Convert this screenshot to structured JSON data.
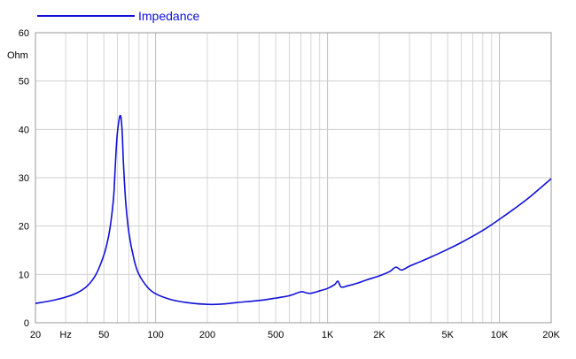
{
  "legend": {
    "label": "Impedance",
    "color": "#1010d8"
  },
  "chart_data": {
    "type": "line",
    "title": "",
    "xlabel": "",
    "ylabel": "Ohm",
    "x_scale": "log",
    "xlim": [
      20,
      20000
    ],
    "ylim": [
      0,
      60
    ],
    "grid": true,
    "legend_position": "top-left",
    "y_ticks": [
      0,
      10,
      20,
      30,
      40,
      50,
      60
    ],
    "x_tick_labels": [
      {
        "x": 20,
        "label": "20"
      },
      {
        "x": 30,
        "label": "Hz"
      },
      {
        "x": 50,
        "label": "50"
      },
      {
        "x": 100,
        "label": "100"
      },
      {
        "x": 200,
        "label": "200"
      },
      {
        "x": 500,
        "label": "500"
      },
      {
        "x": 1000,
        "label": "1K"
      },
      {
        "x": 2000,
        "label": "2K"
      },
      {
        "x": 5000,
        "label": "5K"
      },
      {
        "x": 10000,
        "label": "10K"
      },
      {
        "x": 20000,
        "label": "20K"
      }
    ],
    "series": [
      {
        "name": "Impedance",
        "color": "#1010d8",
        "x": [
          20,
          25,
          30,
          35,
          40,
          45,
          50,
          53,
          55,
          57,
          58,
          59,
          60,
          61,
          62,
          63,
          64,
          65,
          67,
          70,
          75,
          80,
          90,
          100,
          120,
          150,
          200,
          250,
          300,
          400,
          500,
          600,
          700,
          750,
          800,
          900,
          1000,
          1100,
          1150,
          1200,
          1300,
          1500,
          1700,
          2000,
          2300,
          2500,
          2700,
          3000,
          3500,
          4000,
          5000,
          6000,
          8000,
          10000,
          12000,
          15000,
          20000
        ],
        "y": [
          4.0,
          4.6,
          5.3,
          6.2,
          7.6,
          10.0,
          14.0,
          17.5,
          21.0,
          26.0,
          31.0,
          36.0,
          39.5,
          41.5,
          42.8,
          42.3,
          39.0,
          33.0,
          25.0,
          18.5,
          13.0,
          10.0,
          7.3,
          6.0,
          4.9,
          4.2,
          3.8,
          3.9,
          4.2,
          4.6,
          5.1,
          5.6,
          6.4,
          6.2,
          6.1,
          6.6,
          7.1,
          7.9,
          8.6,
          7.4,
          7.6,
          8.2,
          8.9,
          9.7,
          10.6,
          11.5,
          10.9,
          11.7,
          12.7,
          13.6,
          15.2,
          16.6,
          19.1,
          21.4,
          23.4,
          26.0,
          29.8
        ]
      }
    ]
  }
}
